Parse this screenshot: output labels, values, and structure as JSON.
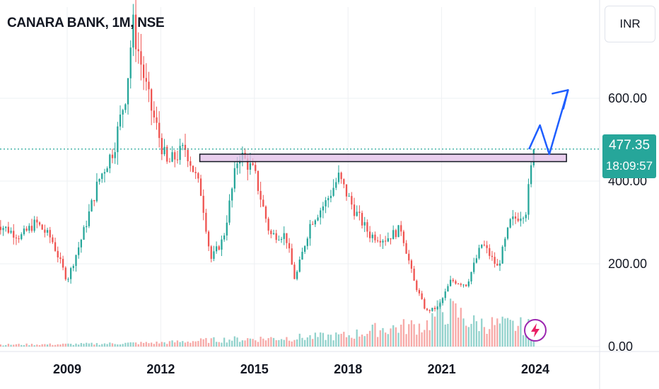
{
  "header": {
    "symbol_title": "CANARA BANK, 1M, NSE",
    "currency": "INR"
  },
  "price_tag": {
    "price": "477.35",
    "countdown": "18:09:57"
  },
  "colors": {
    "up": "#26a69a",
    "down": "#ef5350",
    "grid": "#eef0f3",
    "zone_fill": "#e1bee7",
    "arrow": "#1e5eff",
    "badge": "#9c27b0",
    "last_price_line": "#26a69a"
  },
  "badge_icon": "lightning-bolt-icon",
  "chart_data": {
    "type": "candlestick",
    "title": "CANARA BANK, 1M, NSE",
    "y_unit": "INR",
    "y_ticks": [
      "0.00",
      "200.00",
      "400.00",
      "600.00"
    ],
    "x_ticks": [
      "2009",
      "2012",
      "2015",
      "2018",
      "2021",
      "2024"
    ],
    "ylim": [
      0,
      870
    ],
    "xlim": [
      2006.7,
      2026.0
    ],
    "grid": true,
    "last_price": 477.35,
    "resistance_zone": {
      "x_start": 2013.25,
      "x_end": 2025.0,
      "low": 447,
      "high": 465
    },
    "projection_path": [
      {
        "x": 2023.8,
        "y": 477
      },
      {
        "x": 2024.15,
        "y": 535
      },
      {
        "x": 2024.45,
        "y": 465
      },
      {
        "x": 2025.05,
        "y": 620
      },
      {
        "x": 2024.9,
        "y": 575
      }
    ],
    "series": [
      {
        "name": "price",
        "x": [
          2006.7,
          2007.5,
          2008.0,
          2008.5,
          2009.0,
          2009.5,
          2010.0,
          2010.5,
          2010.9,
          2011.1,
          2011.6,
          2012.2,
          2012.8,
          2013.3,
          2013.6,
          2014.0,
          2014.5,
          2015.0,
          2015.5,
          2016.0,
          2016.3,
          2016.8,
          2017.3,
          2017.7,
          2018.2,
          2018.7,
          2019.2,
          2019.7,
          2020.1,
          2020.5,
          2020.9,
          2021.3,
          2021.8,
          2022.3,
          2022.8,
          2023.2,
          2023.7,
          2023.95
        ],
        "values": [
          300,
          265,
          300,
          260,
          160,
          270,
          400,
          480,
          620,
          780,
          600,
          440,
          480,
          370,
          210,
          260,
          470,
          420,
          270,
          270,
          160,
          300,
          350,
          410,
          330,
          270,
          260,
          285,
          160,
          85,
          95,
          160,
          150,
          250,
          190,
          300,
          330,
          477
        ]
      },
      {
        "name": "volume",
        "x": [
          2006.7,
          2009.0,
          2012.0,
          2014.0,
          2016.0,
          2017.0,
          2018.0,
          2019.0,
          2020.0,
          2020.5,
          2021.0,
          2021.5,
          2022.0,
          2023.0,
          2024.0
        ],
        "values": [
          5,
          6,
          10,
          18,
          22,
          25,
          28,
          45,
          52,
          55,
          95,
          85,
          60,
          55,
          50
        ]
      }
    ]
  }
}
